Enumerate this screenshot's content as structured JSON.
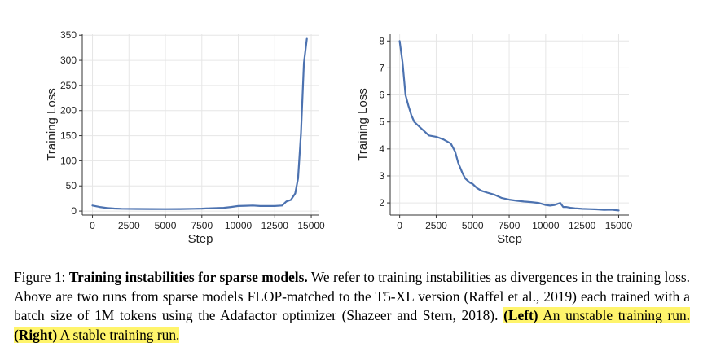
{
  "figure": {
    "charts": [
      {
        "id": "left",
        "chart_data": {
          "type": "line",
          "xlabel": "Step",
          "ylabel": "Training Loss",
          "xlim": [
            -700,
            15500
          ],
          "ylim": [
            -8,
            352
          ],
          "x_ticks": [
            0,
            2500,
            5000,
            7500,
            10000,
            12500,
            15000
          ],
          "y_ticks": [
            0,
            50,
            100,
            150,
            200,
            250,
            300,
            350
          ],
          "grid": true,
          "series": [
            {
              "color": "#4c72b0",
              "x": [
                0,
                500,
                1000,
                1500,
                2000,
                3000,
                4000,
                5000,
                6000,
                7000,
                7500,
                8000,
                9000,
                9500,
                10000,
                10500,
                11000,
                11500,
                12000,
                12500,
                13000,
                13300,
                13600,
                13900,
                14100,
                14300,
                14500,
                14700
              ],
              "y": [
                11,
                8,
                6,
                5,
                4.5,
                4.2,
                4.0,
                3.8,
                4.0,
                4.5,
                4.8,
                5.5,
                6.5,
                8,
                10,
                10.5,
                11,
                10,
                10,
                10,
                11,
                19,
                22,
                35,
                65,
                155,
                295,
                343
              ]
            }
          ]
        }
      },
      {
        "id": "right",
        "chart_data": {
          "type": "line",
          "xlabel": "Step",
          "ylabel": "Training Loss",
          "xlim": [
            -650,
            15700
          ],
          "ylim": [
            1.55,
            8.25
          ],
          "x_ticks": [
            0,
            2500,
            5000,
            7500,
            10000,
            12500,
            15000
          ],
          "y_ticks": [
            2,
            3,
            4,
            5,
            6,
            7,
            8
          ],
          "grid": true,
          "series": [
            {
              "color": "#4c72b0",
              "x": [
                0,
                200,
                400,
                600,
                800,
                1000,
                1500,
                2000,
                2500,
                3000,
                3500,
                3800,
                4000,
                4300,
                4500,
                4800,
                5000,
                5300,
                5600,
                6000,
                6500,
                7000,
                7500,
                8000,
                8500,
                9000,
                9500,
                10000,
                10300,
                10600,
                11000,
                11200,
                11400,
                11700,
                12000,
                12500,
                13000,
                13500,
                14000,
                14500,
                15000
              ],
              "y": [
                8.0,
                7.2,
                6.0,
                5.6,
                5.25,
                5.0,
                4.75,
                4.5,
                4.45,
                4.35,
                4.2,
                3.9,
                3.5,
                3.1,
                2.9,
                2.75,
                2.7,
                2.55,
                2.45,
                2.38,
                2.3,
                2.18,
                2.12,
                2.08,
                2.05,
                2.03,
                2.0,
                1.92,
                1.9,
                1.92,
                2.0,
                1.85,
                1.85,
                1.82,
                1.8,
                1.78,
                1.77,
                1.76,
                1.74,
                1.75,
                1.72
              ]
            }
          ]
        }
      }
    ]
  },
  "caption": {
    "label": "Figure 1:",
    "title": "Training instabilities for sparse models.",
    "body": "We refer to training instabilities as divergences in the training loss. Above are two runs from sparse models FLOP-matched to the T5-XL version (Raffel et al., 2019) each trained with a batch size of 1M tokens using the Adafactor optimizer (Shazeer and Stern, 2018).",
    "left_tag": "(Left)",
    "left_text": "An unstable training run.",
    "right_tag": "(Right)",
    "right_text": "A stable training run."
  }
}
